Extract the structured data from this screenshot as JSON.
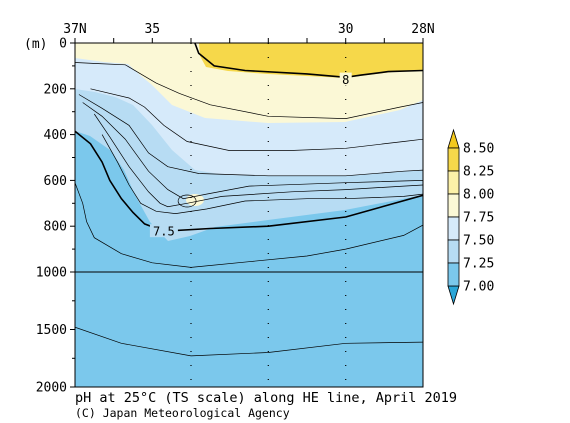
{
  "chart_data": {
    "type": "heatmap",
    "title": "pH at 25°C (TS scale) along HE line, April 2019",
    "credit": "(C) Japan Meteorological Agency",
    "y_unit_label": "(m)",
    "x_ticks": [
      {
        "lat": 37,
        "label": "37N"
      },
      {
        "lat": 35,
        "label": "35"
      },
      {
        "lat": 30,
        "label": "30"
      },
      {
        "lat": 28,
        "label": "28N"
      }
    ],
    "xlim": [
      37,
      28
    ],
    "station_lats": [
      34,
      32,
      30
    ],
    "y_ticks_upper": [
      0,
      200,
      400,
      600,
      800,
      1000
    ],
    "y_ticks_lower": [
      1500,
      2000
    ],
    "y_ticks_upper_labels": [
      "0",
      "200",
      "400",
      "600",
      "800",
      "1000"
    ],
    "y_ticks_lower_labels": [
      "1500",
      "2000"
    ],
    "ylim_upper": [
      0,
      1000
    ],
    "ylim_lower": [
      1000,
      2000
    ],
    "colorbar": {
      "levels": [
        7.0,
        7.25,
        7.5,
        7.75,
        8.0,
        8.25,
        8.5
      ],
      "labels": [
        "7.00",
        "7.25",
        "7.50",
        "7.75",
        "8.00",
        "8.25",
        "8.50"
      ],
      "colors": [
        "#2aa6d8",
        "#7bc8ec",
        "#b7dcf3",
        "#d6eafa",
        "#fbf8d6",
        "#fcf1a8",
        "#f6d84a",
        "#f3c81c"
      ]
    },
    "contour_labels": [
      {
        "value": "8",
        "lat": 30.0,
        "depth": 160
      },
      {
        "value": "7.5",
        "lat": 34.7,
        "depth": 822
      }
    ],
    "contours": [
      {
        "level": "8.00",
        "bold": true,
        "points": [
          [
            33.9,
            0
          ],
          [
            33.8,
            45
          ],
          [
            33.4,
            100
          ],
          [
            32.6,
            120
          ],
          [
            31,
            135
          ],
          [
            30,
            150
          ],
          [
            29.6,
            140
          ],
          [
            28.9,
            125
          ],
          [
            28,
            120
          ]
        ]
      },
      {
        "level": "7.75",
        "bold": false,
        "points": [
          [
            37,
            85
          ],
          [
            36.4,
            90
          ],
          [
            35.7,
            95
          ],
          [
            35.3,
            135
          ],
          [
            34.9,
            175
          ],
          [
            34.3,
            220
          ],
          [
            33.5,
            270
          ],
          [
            32,
            320
          ],
          [
            30,
            330
          ],
          [
            28.6,
            280
          ],
          [
            28,
            260
          ]
        ]
      },
      {
        "level": "7.75",
        "bold": false,
        "points": [
          [
            36.6,
            200
          ],
          [
            35.6,
            240
          ],
          [
            35.2,
            280
          ],
          [
            34.7,
            360
          ],
          [
            34.1,
            430
          ],
          [
            33,
            470
          ],
          [
            31.5,
            470
          ],
          [
            30,
            460
          ],
          [
            28.5,
            430
          ],
          [
            28,
            420
          ]
        ]
      },
      {
        "level": "7.50",
        "bold": false,
        "points": [
          [
            36.9,
            225
          ],
          [
            36.3,
            285
          ],
          [
            35.6,
            360
          ],
          [
            35.1,
            480
          ],
          [
            34.6,
            540
          ],
          [
            33.8,
            570
          ],
          [
            32,
            580
          ],
          [
            30,
            580
          ],
          [
            28.5,
            560
          ],
          [
            28,
            555
          ]
        ]
      },
      {
        "level": "7.50",
        "bold": false,
        "points": [
          [
            36.8,
            260
          ],
          [
            36.3,
            320
          ],
          [
            35.7,
            420
          ],
          [
            35.1,
            560
          ],
          [
            34.6,
            640
          ],
          [
            34.2,
            680
          ],
          [
            33.6,
            660
          ],
          [
            32.5,
            625
          ],
          [
            30,
            610
          ],
          [
            28,
            600
          ]
        ]
      },
      {
        "level": "7.25",
        "bold": false,
        "points": [
          [
            36.5,
            310
          ],
          [
            36.1,
            410
          ],
          [
            35.6,
            540
          ],
          [
            35.1,
            650
          ],
          [
            34.8,
            700
          ],
          [
            34.6,
            715
          ],
          [
            34.1,
            700
          ],
          [
            33.2,
            670
          ],
          [
            31.4,
            650
          ],
          [
            30,
            640
          ],
          [
            28.5,
            625
          ],
          [
            28,
            620
          ]
        ]
      },
      {
        "level": "7.25",
        "bold": false,
        "points": [
          [
            36.3,
            400
          ],
          [
            35.9,
            520
          ],
          [
            35.6,
            620
          ],
          [
            35.3,
            700
          ],
          [
            34.9,
            735
          ],
          [
            34.4,
            745
          ],
          [
            33.6,
            725
          ],
          [
            32.6,
            690
          ],
          [
            31,
            680
          ],
          [
            30,
            680
          ],
          [
            28.5,
            670
          ],
          [
            28,
            660
          ]
        ]
      },
      {
        "level": "7.50",
        "bold": true,
        "points": [
          [
            37,
            385
          ],
          [
            36.6,
            440
          ],
          [
            36.3,
            520
          ],
          [
            36.1,
            600
          ],
          [
            35.8,
            680
          ],
          [
            35.5,
            740
          ],
          [
            35.2,
            790
          ],
          [
            34.7,
            822
          ],
          [
            33.5,
            810
          ],
          [
            32,
            800
          ],
          [
            30,
            760
          ],
          [
            28,
            665
          ]
        ]
      },
      {
        "level": "7.25",
        "bold": false,
        "points": [
          [
            37,
            610
          ],
          [
            36.8,
            700
          ],
          [
            36.7,
            780
          ],
          [
            36.5,
            850
          ],
          [
            35.8,
            920
          ],
          [
            35,
            960
          ],
          [
            34,
            980
          ],
          [
            32.5,
            955
          ],
          [
            31,
            930
          ],
          [
            30,
            900
          ],
          [
            28.5,
            840
          ],
          [
            28,
            795
          ]
        ]
      },
      {
        "level": "7.25",
        "bold": false,
        "points": [
          [
            37,
            1480
          ],
          [
            35.8,
            1620
          ],
          [
            34,
            1730
          ],
          [
            32,
            1700
          ],
          [
            30,
            1620
          ],
          [
            28,
            1610
          ]
        ]
      }
    ],
    "bubble": {
      "lat": 34.1,
      "depth": 690,
      "level": "7.75"
    }
  }
}
